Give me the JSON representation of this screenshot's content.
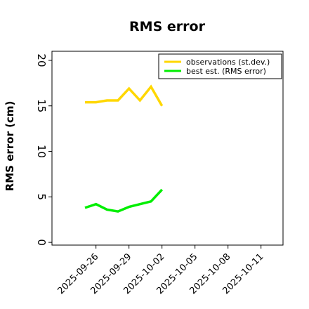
{
  "chart_data": {
    "type": "line",
    "title": "RMS error",
    "xlabel": "",
    "ylabel": "RMS error (cm)",
    "ylim": [
      -0.3,
      21
    ],
    "yticks": [
      0,
      5,
      10,
      15,
      20
    ],
    "xlim": [
      "2025-09-22",
      "2025-10-13"
    ],
    "xticks": [
      "2025-09-26",
      "2025-09-29",
      "2025-10-02",
      "2025-10-05",
      "2025-10-08",
      "2025-10-11"
    ],
    "highlight_tick": "2025-10-02",
    "highlight_color": "#2e8b2e",
    "grid": false,
    "legend_position": "top-right",
    "series": [
      {
        "name": "observations (st.dev.)",
        "color": "#ffd700",
        "x": [
          "2025-09-25",
          "2025-09-26",
          "2025-09-27",
          "2025-09-28",
          "2025-09-29",
          "2025-09-30",
          "2025-10-01",
          "2025-10-02"
        ],
        "y": [
          15.4,
          15.4,
          15.6,
          15.6,
          16.9,
          15.6,
          17.1,
          15.0
        ]
      },
      {
        "name": "best est. (RMS error)",
        "color": "#00ee00",
        "x": [
          "2025-09-25",
          "2025-09-26",
          "2025-09-27",
          "2025-09-28",
          "2025-09-29",
          "2025-09-30",
          "2025-10-01",
          "2025-10-02"
        ],
        "y": [
          3.8,
          4.2,
          3.6,
          3.4,
          3.9,
          4.2,
          4.5,
          5.8
        ]
      }
    ]
  }
}
